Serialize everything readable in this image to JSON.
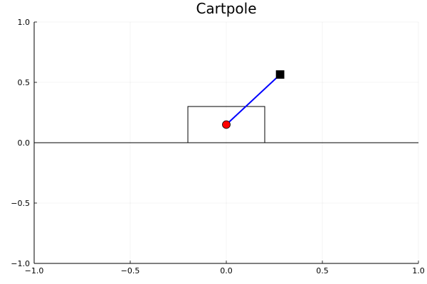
{
  "chart_data": {
    "type": "scatter",
    "title": "Cartpole",
    "xlabel": "",
    "ylabel": "",
    "xlim": [
      -1.0,
      1.0
    ],
    "ylim": [
      -1.0,
      1.0
    ],
    "xticks": [
      -1.0,
      -0.5,
      0.0,
      0.5,
      1.0
    ],
    "xtick_labels": [
      "−1.0",
      "−0.5",
      "0.0",
      "0.5",
      "1.0"
    ],
    "yticks": [
      -1.0,
      -0.5,
      0.0,
      0.5,
      1.0
    ],
    "ytick_labels": [
      "−1.0",
      "−0.5",
      "0.0",
      "0.5",
      "1.0"
    ],
    "grid": true,
    "legend": false,
    "ground": {
      "y": 0.0,
      "color": "#000000"
    },
    "cart": {
      "x": [
        -0.2,
        0.2
      ],
      "y": [
        0.0,
        0.3
      ],
      "stroke": "#000000",
      "fill": "none"
    },
    "pole": {
      "x": [
        0.0,
        0.28
      ],
      "y": [
        0.15,
        0.565
      ],
      "color": "#0000ff"
    },
    "pivot": {
      "x": 0.0,
      "y": 0.15,
      "shape": "circle",
      "color": "#ff0000"
    },
    "tip": {
      "x": 0.28,
      "y": 0.565,
      "shape": "square",
      "color": "#000000"
    }
  }
}
